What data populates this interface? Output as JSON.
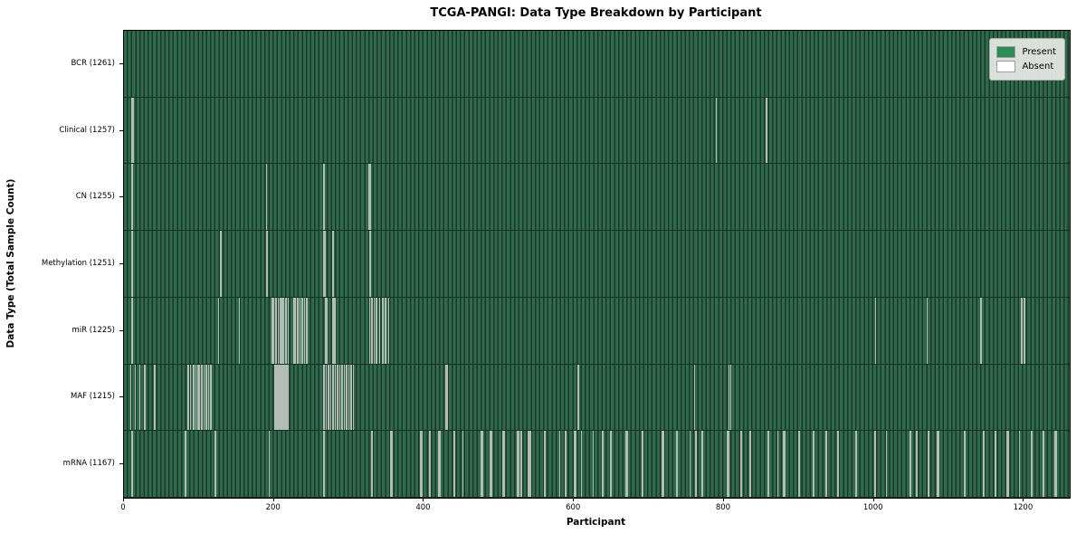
{
  "title": "TCGA-PANGI: Data Type Breakdown by Participant",
  "axes": {
    "xlabel": "Participant",
    "ylabel": "Data Type (Total Sample Count)",
    "x_ticks": [
      0,
      200,
      400,
      600,
      800,
      1000,
      1200
    ],
    "x_max": 1261
  },
  "legend": {
    "entries": [
      {
        "label": "Present",
        "color": "#2e8b57"
      },
      {
        "label": "Absent",
        "color": "#ffffff"
      }
    ]
  },
  "colors": {
    "present_stripe_green": "#2f6a4d",
    "present_stripe_dark": "#1b3727",
    "absent_line": "#b4bcb6",
    "row_separator": "#16301f",
    "plot_border": "#000000",
    "background": "#ffffff"
  },
  "chart_data": {
    "type": "heatmap",
    "subtype": "binary-presence-matrix",
    "title": "TCGA-PANGI: Data Type Breakdown by Participant",
    "xlabel": "Participant",
    "ylabel": "Data Type (Total Sample Count)",
    "x_range": [
      0,
      1261
    ],
    "x_ticks": [
      0,
      200,
      400,
      600,
      800,
      1000,
      1200
    ],
    "legend_position": "upper right",
    "rows": [
      {
        "label": "BCR (1261)",
        "name": "BCR",
        "total_sample_count": 1261,
        "absent_positions": []
      },
      {
        "label": "Clinical (1257)",
        "name": "Clinical",
        "total_sample_count": 1257,
        "absent_positions": [
          10,
          11,
          789,
          856
        ]
      },
      {
        "label": "CN (1255)",
        "name": "CN",
        "total_sample_count": 1255,
        "absent_positions": [
          10,
          189,
          266,
          326,
          327,
          328
        ]
      },
      {
        "label": "Methylation (1251)",
        "name": "Methylation",
        "total_sample_count": 1251,
        "absent_positions": [
          10,
          128,
          129,
          189,
          190,
          266,
          267,
          278,
          327,
          328
        ]
      },
      {
        "label": "miR (1225)",
        "name": "miR",
        "total_sample_count": 1225,
        "absent_positions": [
          10,
          125,
          153,
          197,
          198,
          202,
          205,
          208,
          210,
          212,
          215,
          218,
          226,
          228,
          231,
          234,
          237,
          240,
          243,
          268,
          270,
          278,
          280,
          327,
          330,
          333,
          336,
          340,
          344,
          348,
          352,
          1001,
          1070,
          1142,
          1196,
          1200
        ]
      },
      {
        "label": "MAF (1215)",
        "name": "MAF",
        "total_sample_count": 1215,
        "absent_positions": [
          8,
          14,
          20,
          27,
          40,
          85,
          88,
          92,
          95,
          98,
          100,
          103,
          106,
          109,
          112,
          115,
          200,
          202,
          204,
          206,
          208,
          210,
          212,
          214,
          216,
          218,
          266,
          269,
          272,
          275,
          278,
          281,
          284,
          287,
          290,
          293,
          296,
          299,
          302,
          305,
          428,
          430,
          605,
          760,
          806,
          808
        ]
      },
      {
        "label": "mRNA (1167)",
        "name": "mRNA",
        "total_sample_count": 1167,
        "absent_positions": [
          10,
          81,
          121,
          193,
          266,
          330,
          355,
          356,
          395,
          396,
          407,
          419,
          420,
          439,
          440,
          451,
          476,
          477,
          488,
          489,
          505,
          506,
          524,
          525,
          528,
          529,
          538,
          539,
          540,
          541,
          560,
          561,
          580,
          588,
          600,
          601,
          609,
          625,
          637,
          638,
          648,
          649,
          669,
          670,
          690,
          691,
          717,
          718,
          736,
          737,
          754,
          762,
          770,
          771,
          804,
          805,
          822,
          834,
          835,
          858,
          871,
          879,
          880,
          899,
          900,
          918,
          919,
          935,
          936,
          951,
          975,
          976,
          1000,
          1001,
          1016,
          1048,
          1056,
          1057,
          1072,
          1084,
          1085,
          1120,
          1121,
          1145,
          1146,
          1161,
          1177,
          1178,
          1193,
          1209,
          1210,
          1225,
          1241,
          1242
        ]
      }
    ]
  }
}
